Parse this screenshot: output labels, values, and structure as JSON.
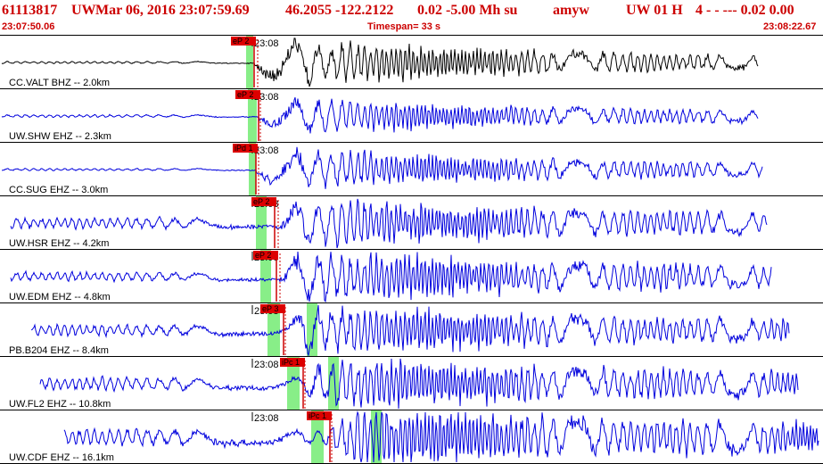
{
  "header": {
    "event_id": "61113817",
    "network": "UW",
    "datetime": "Mar 06, 2016 23:07:59.69",
    "location": "46.2055 -122.2122",
    "magnitude": "0.02 -5.00 Mh su",
    "analyst": "amyw",
    "source": "UW 01 H",
    "quality": "4  -  - ---  0.02 0.00"
  },
  "subheader": {
    "start_time": "23:07:50.06",
    "timespan": "Timespan=  33 s",
    "end_time": "23:08:22.67"
  },
  "colors": {
    "header_text": "#cc0000",
    "trace_black": "#000000",
    "trace_blue": "#0000dd",
    "pick_box": "#dd0000",
    "pick_line": "#cc0000",
    "window_green": "#88ee88"
  },
  "traces": [
    {
      "label": "CC.VALT BHZ -- 2.0km",
      "tick_label": "23:08",
      "pick_label": "eP 2",
      "color": "black"
    },
    {
      "label": "UW.SHW EHZ -- 2.3km",
      "tick_label": "23:08",
      "pick_label": "eP 2",
      "color": "blue"
    },
    {
      "label": "CC.SUG EHZ -- 3.0km",
      "tick_label": "23:08",
      "pick_label": "iPd 1",
      "color": "blue"
    },
    {
      "label": "UW.HSR EHZ -- 4.2km",
      "tick_label": "23:08",
      "pick_label": "eP 2",
      "color": "blue"
    },
    {
      "label": "UW.EDM EHZ -- 4.8km",
      "tick_label": "23:08",
      "pick_label": "eP 2",
      "color": "blue"
    },
    {
      "label": "PB.B204 EHZ -- 8.4km",
      "tick_label": "23:08",
      "pick_label": "eP 3",
      "color": "blue"
    },
    {
      "label": "UW.FL2 EHZ -- 10.8km",
      "tick_label": "23:08",
      "pick_label": "iPc 1",
      "color": "blue"
    },
    {
      "label": "UW.CDF EHZ -- 16.1km",
      "tick_label": "23:08",
      "pick_label": "iPc 1",
      "color": "blue"
    }
  ]
}
